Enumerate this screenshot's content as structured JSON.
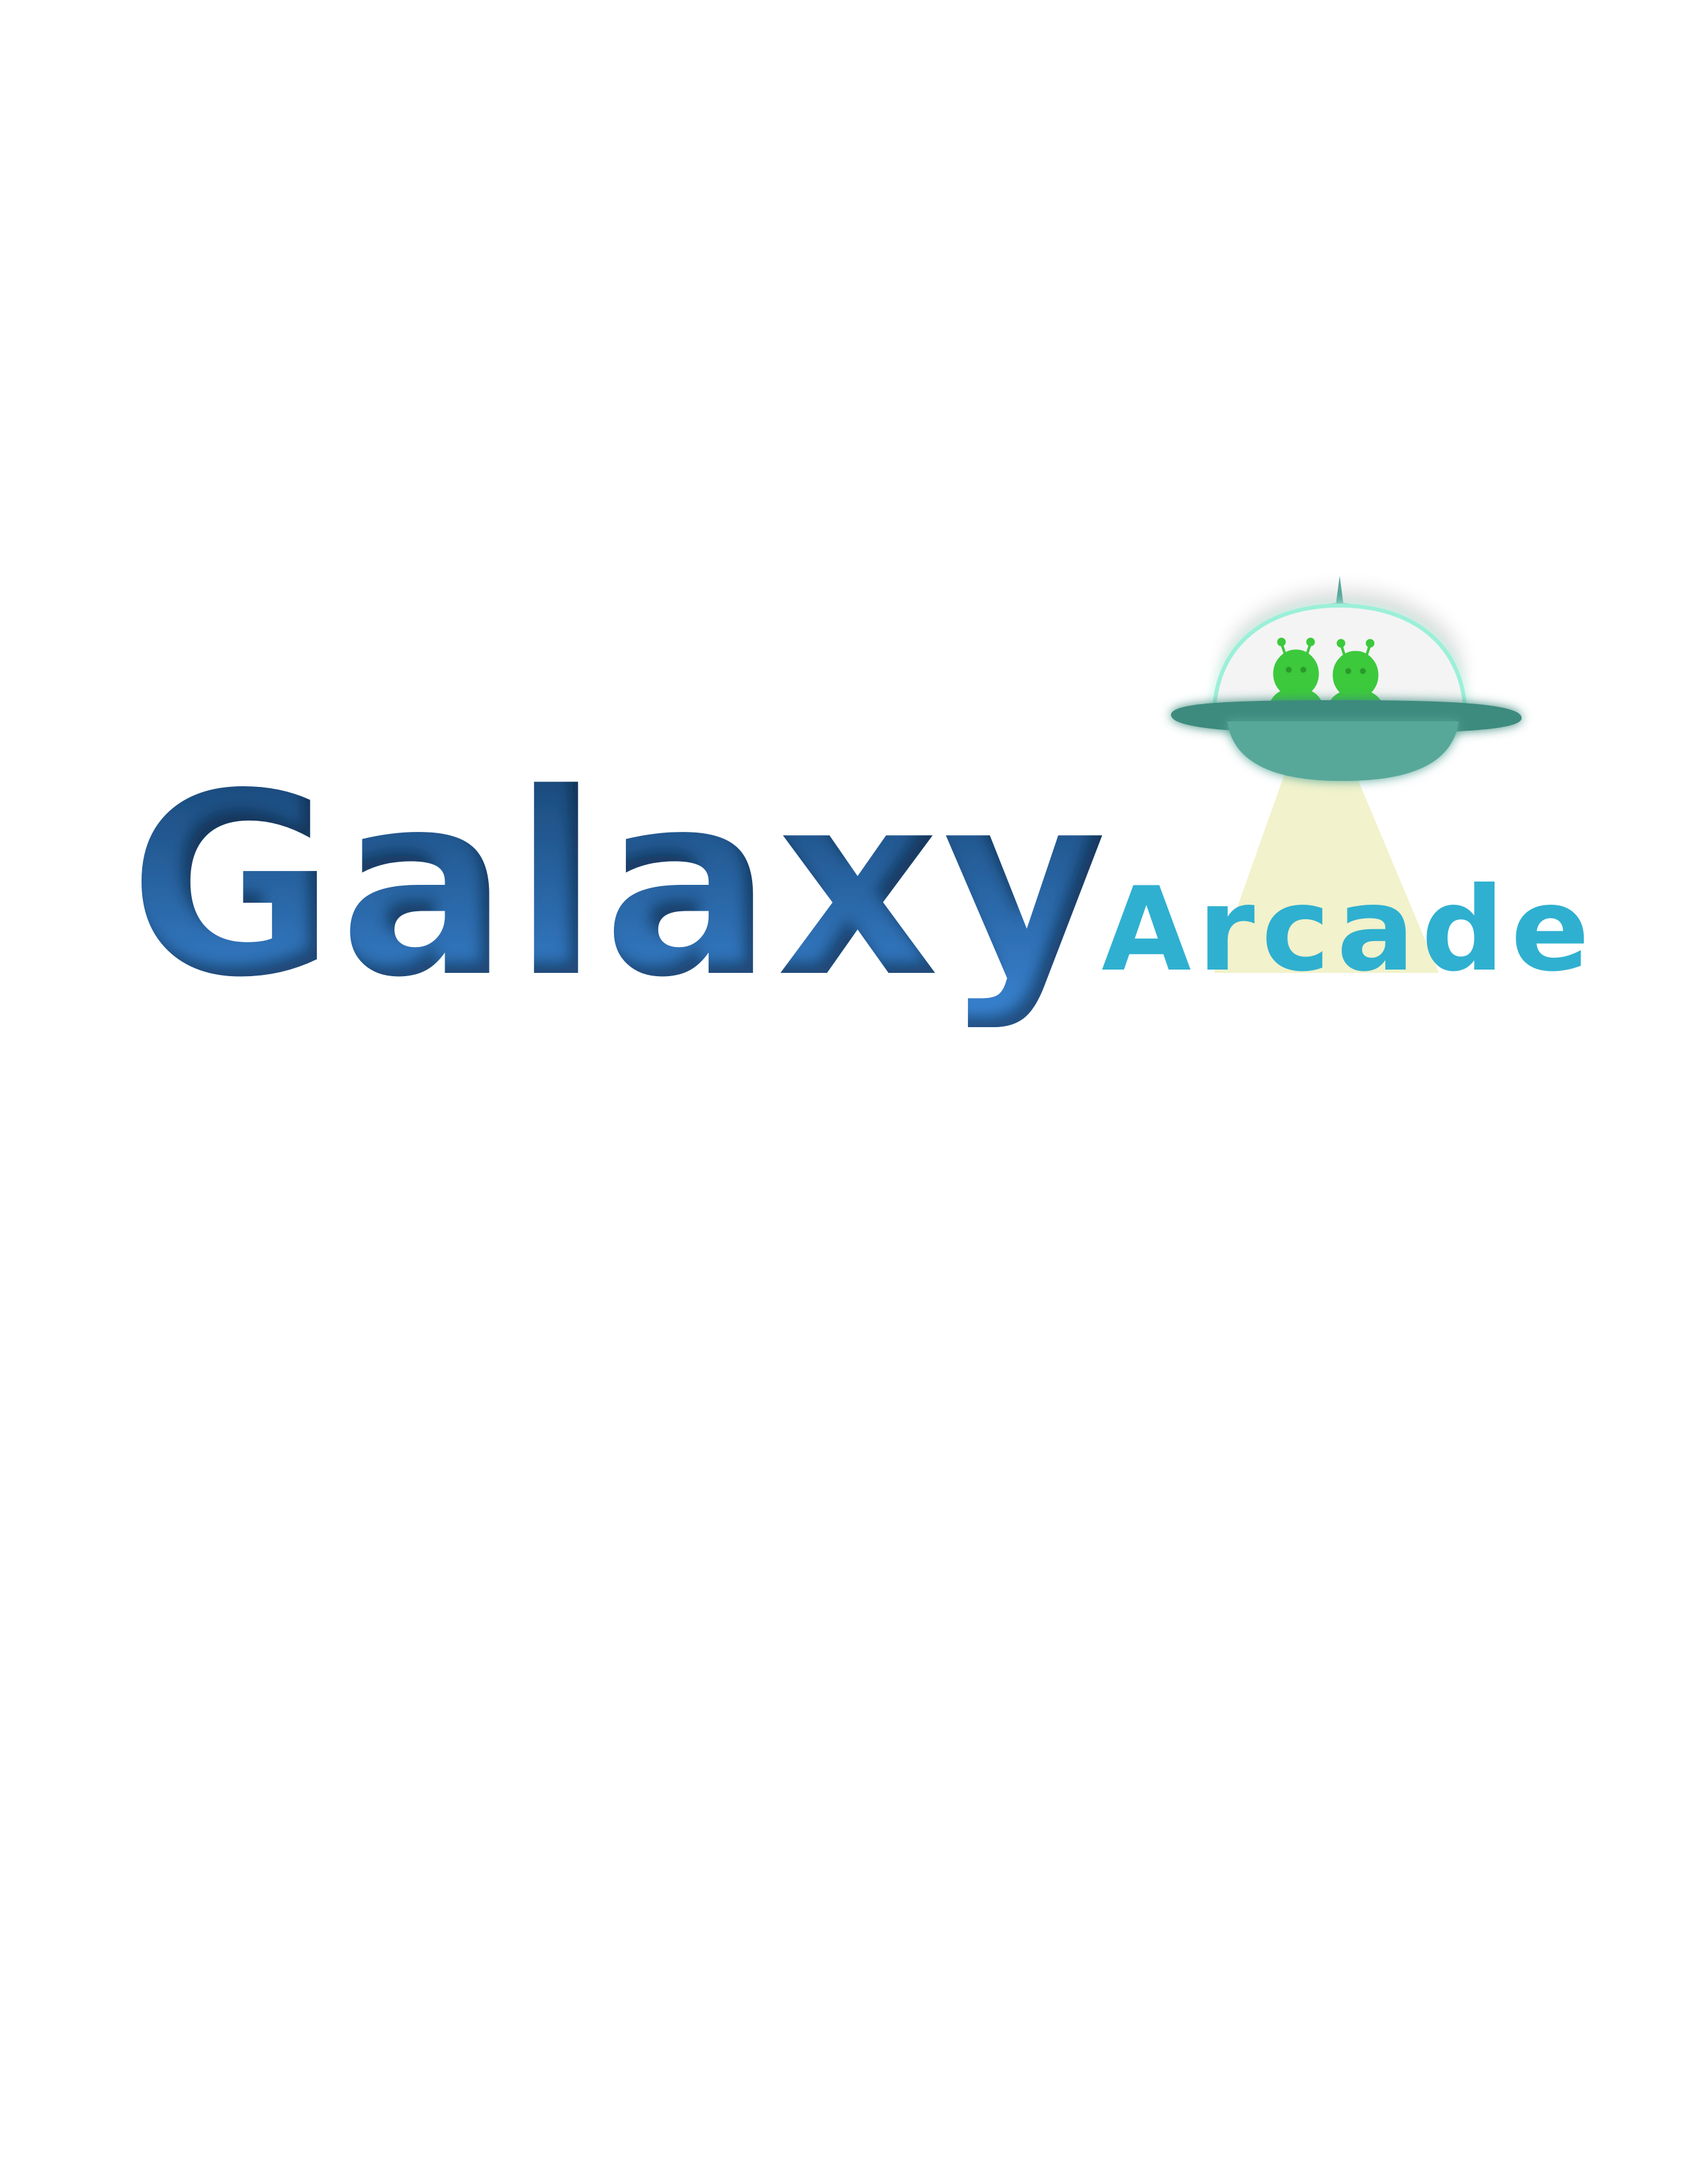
{
  "logo": {
    "main_word": "Galaxy",
    "sub_word": "Arcade"
  },
  "colors": {
    "main_top": "#17426f",
    "main_bottom": "#3a86d6",
    "sub_word": "#2fb0d0",
    "ship_body": "#58a89a",
    "ship_dark": "#3c8b7e",
    "ship_glow": "#9bf0d8",
    "dome": "#f4f4f4",
    "alien": "#3cc93c",
    "beam": "#f2f2cc",
    "background": "#ffffff"
  },
  "icons": {
    "ship": "ufo-icon",
    "alien": "alien-icon",
    "beam": "light-beam-icon"
  }
}
